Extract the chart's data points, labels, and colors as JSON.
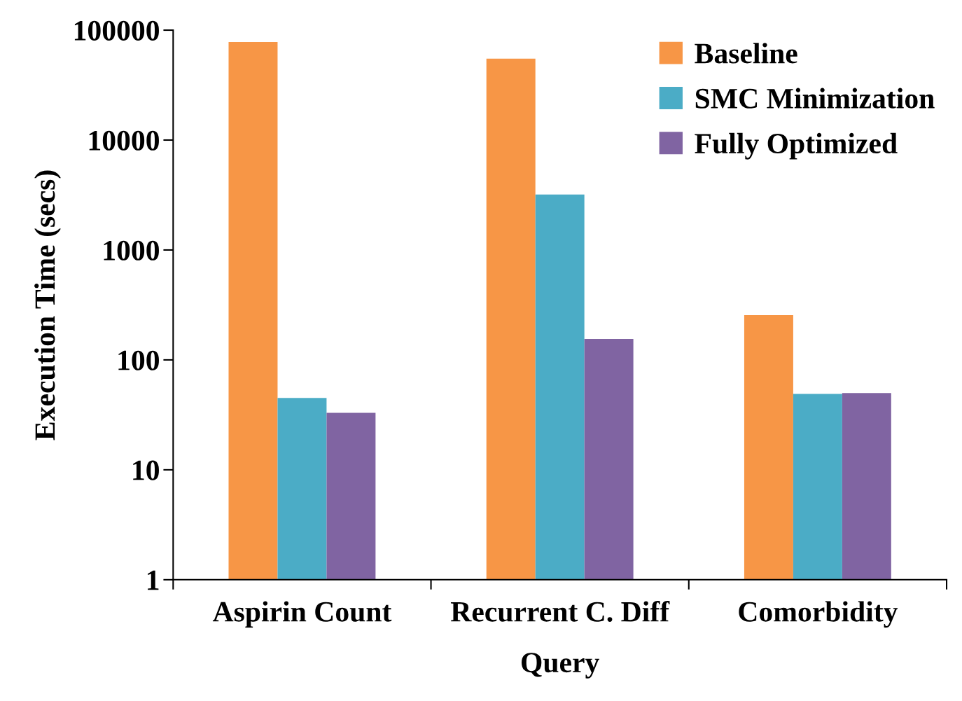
{
  "chart_data": {
    "type": "bar",
    "xlabel": "Query",
    "ylabel": "Execution Time (secs)",
    "categories": [
      "Aspirin Count",
      "Recurrent C. Diff",
      "Comorbidity"
    ],
    "series": [
      {
        "name": "Baseline",
        "color": "#f79646",
        "values": [
          78000,
          55000,
          255
        ]
      },
      {
        "name": "SMC Minimization",
        "color": "#4bacc6",
        "values": [
          45,
          3200,
          49
        ]
      },
      {
        "name": "Fully Optimized",
        "color": "#8064a2",
        "values": [
          33,
          155,
          50
        ]
      }
    ],
    "log": true,
    "ylim": [
      1,
      100000
    ],
    "yticks": [
      1,
      10,
      100,
      1000,
      10000,
      100000
    ],
    "grid": false,
    "legend": "top right"
  }
}
